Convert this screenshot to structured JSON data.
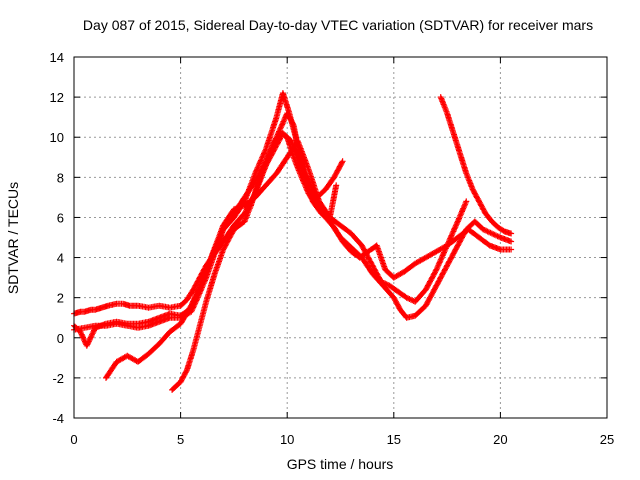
{
  "chart_data": {
    "type": "scatter",
    "title": "Day 087 of 2015, Sidereal Day-to-day VTEC variation (SDTVAR) for receiver mars",
    "xlabel": "GPS time / hours",
    "ylabel": "SDTVAR / TECUs",
    "xlim": [
      0,
      25
    ],
    "ylim": [
      -4,
      14
    ],
    "xticks": [
      "0",
      "5",
      "10",
      "15",
      "20",
      "25"
    ],
    "yticks": [
      "-4",
      "-2",
      "0",
      "2",
      "4",
      "6",
      "8",
      "10",
      "12",
      "14"
    ],
    "grid": true,
    "marker": "+",
    "color": "#ff0000",
    "series": [
      {
        "x": [
          0.0,
          0.3,
          0.5,
          0.8,
          1.0,
          1.3,
          1.6,
          2.0,
          2.3,
          2.6,
          3.0,
          3.5,
          4.0,
          4.5,
          5.0,
          5.3,
          5.6,
          5.9,
          6.2,
          6.6,
          7.0,
          7.5,
          8.0,
          8.5,
          9.0,
          9.4,
          9.7,
          10.0,
          10.3,
          10.6,
          11.0,
          11.4,
          11.8,
          12.2,
          12.6,
          13.0,
          13.4,
          13.8,
          14.2,
          14.6,
          15.0,
          15.5,
          16.0,
          16.5,
          17.0,
          17.5,
          18.0,
          18.5,
          19.0,
          19.5,
          20.0,
          20.5
        ],
        "y": [
          1.2,
          1.3,
          1.3,
          1.4,
          1.4,
          1.5,
          1.6,
          1.7,
          1.7,
          1.6,
          1.6,
          1.5,
          1.6,
          1.5,
          1.6,
          1.9,
          2.4,
          3.0,
          3.6,
          4.2,
          4.8,
          5.6,
          6.2,
          7.2,
          8.6,
          9.8,
          10.2,
          10.0,
          9.0,
          8.2,
          7.2,
          6.5,
          6.0,
          5.5,
          4.8,
          4.3,
          4.0,
          4.3,
          4.6,
          3.4,
          3.0,
          3.3,
          3.7,
          4.0,
          4.3,
          4.6,
          5.0,
          5.4,
          5.0,
          4.6,
          4.4,
          4.4
        ]
      },
      {
        "x": [
          0.0,
          0.3,
          0.6,
          1.0,
          1.5,
          2.0,
          2.5,
          3.0,
          3.5,
          4.0,
          4.5,
          5.0,
          5.4,
          5.8,
          6.2,
          6.6,
          7.0,
          7.5,
          8.0,
          8.5,
          9.0,
          9.5,
          9.8,
          10.1,
          10.4,
          10.8,
          11.2,
          11.6,
          12.0,
          12.5,
          13.0,
          13.5,
          14.0,
          14.5,
          15.0,
          15.3,
          15.6,
          16.0,
          16.5,
          17.0,
          17.5,
          18.0,
          18.4,
          18.8,
          19.2,
          19.6,
          20.0,
          20.5
        ],
        "y": [
          0.6,
          0.3,
          -0.4,
          0.5,
          0.7,
          0.8,
          0.7,
          0.7,
          0.8,
          1.0,
          1.2,
          1.1,
          1.4,
          2.2,
          3.4,
          4.4,
          5.4,
          6.0,
          6.8,
          8.2,
          9.4,
          11.0,
          12.2,
          11.2,
          10.0,
          8.2,
          6.8,
          6.2,
          5.8,
          5.0,
          4.5,
          4.0,
          3.2,
          2.6,
          2.0,
          1.4,
          1.0,
          1.1,
          1.6,
          2.6,
          3.6,
          4.6,
          5.4,
          5.8,
          5.4,
          5.2,
          5.0,
          4.8
        ]
      },
      {
        "x": [
          0.0,
          0.5,
          1.0,
          1.5,
          2.0,
          2.5,
          3.0,
          3.5,
          4.0,
          4.5,
          5.0,
          5.5,
          5.8,
          6.2,
          6.6,
          7.0,
          7.5,
          8.0,
          8.5,
          9.0,
          9.5,
          10.0,
          10.3,
          10.6,
          11.0,
          11.5,
          12.0,
          12.5,
          13.0,
          13.5,
          14.0,
          14.4,
          14.8,
          15.2,
          15.6,
          16.0,
          16.5,
          17.0,
          17.5,
          18.0,
          18.4
        ],
        "y": [
          0.4,
          0.5,
          0.6,
          0.6,
          0.7,
          0.6,
          0.5,
          0.6,
          0.8,
          1.0,
          1.0,
          1.3,
          2.0,
          3.0,
          4.2,
          5.4,
          6.2,
          7.0,
          7.8,
          8.8,
          10.0,
          11.2,
          10.6,
          9.0,
          7.4,
          6.6,
          6.0,
          5.6,
          5.2,
          4.6,
          3.6,
          2.8,
          2.6,
          2.3,
          2.0,
          1.8,
          2.4,
          3.4,
          4.6,
          5.8,
          6.8
        ]
      },
      {
        "x": [
          1.5,
          2.0,
          2.5,
          3.0,
          3.5,
          4.0,
          4.5,
          5.0,
          5.5,
          6.0,
          6.5,
          7.0,
          7.5,
          8.0,
          8.5,
          9.0,
          9.5,
          10.0,
          10.5,
          11.0,
          11.5,
          12.0,
          12.3
        ],
        "y": [
          -2.0,
          -1.2,
          -0.9,
          -1.2,
          -0.8,
          -0.3,
          0.3,
          0.7,
          1.6,
          2.8,
          4.2,
          5.6,
          6.4,
          6.6,
          7.0,
          7.6,
          8.2,
          9.0,
          9.8,
          8.4,
          6.8,
          6.0,
          7.6
        ]
      },
      {
        "x": [
          4.6,
          5.0,
          5.3,
          5.6,
          5.9,
          6.2,
          6.6,
          7.0,
          7.5,
          8.0,
          8.3,
          8.6,
          9.0,
          9.4,
          9.8,
          10.2,
          10.6,
          11.0,
          11.4,
          11.8,
          12.2,
          12.6
        ],
        "y": [
          -2.6,
          -2.2,
          -1.6,
          -0.6,
          0.6,
          1.8,
          3.2,
          4.4,
          5.4,
          5.8,
          6.6,
          7.6,
          8.6,
          9.4,
          10.2,
          9.8,
          8.6,
          7.8,
          7.0,
          7.4,
          8.0,
          8.8
        ]
      },
      {
        "x": [
          17.2,
          17.5,
          17.8,
          18.1,
          18.4,
          18.7,
          19.0,
          19.3,
          19.6,
          19.9,
          20.2,
          20.5
        ],
        "y": [
          12.0,
          11.2,
          10.2,
          9.2,
          8.2,
          7.4,
          6.8,
          6.2,
          5.8,
          5.5,
          5.3,
          5.2
        ]
      }
    ]
  }
}
